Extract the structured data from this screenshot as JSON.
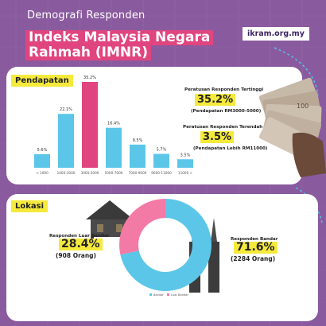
{
  "header": {
    "subtitle": "Demografi Responden",
    "title_line1": "Indeks Malaysia Negara",
    "title_line2": "Rahmah (IMNR)",
    "website": "ikram.org.my"
  },
  "income": {
    "tag": "Pendapatan",
    "highest": {
      "label": "Peratusan Responden Tertinggi",
      "value": "35.2%",
      "note": "(Pendapatan RM3000-5000)"
    },
    "lowest": {
      "label": "Peratusan Responden Terendah",
      "value": "3.5%",
      "note": "(Pendapatan Lebih RM11000)"
    }
  },
  "location": {
    "tag": "Lokasi",
    "rural": {
      "label": "Responden Luar Bandar",
      "percent": "28.4%",
      "count": "(908 Orang)"
    },
    "urban": {
      "label": "Responden Bandar",
      "percent": "71.6%",
      "count": "(2284 Orang)"
    }
  },
  "colors": {
    "highlight_bar": "#e0457f",
    "bar": "#5cc6e8",
    "donut_urban": "#5cc6e8",
    "donut_rural": "#f47aa6"
  },
  "chart_data": [
    {
      "type": "bar",
      "categories": [
        "< 1000",
        "1000-3000",
        "3000-5000",
        "5000-7000",
        "7000-9000",
        "9000-11000",
        "11000 >"
      ],
      "values": [
        5.6,
        22.1,
        35.2,
        16.4,
        9.5,
        5.7,
        3.5
      ],
      "value_labels": [
        "5.6%",
        "22.1%",
        "35.2%",
        "16.4%",
        "9.5%",
        "5.7%",
        "3.5%"
      ],
      "highlight_index": 2,
      "ylim": [
        0,
        35.2
      ],
      "grid": false
    },
    {
      "type": "pie",
      "donut": true,
      "labels": [
        "Bandar",
        "Luar Bandar"
      ],
      "values": [
        71.6,
        28.4
      ],
      "colors": [
        "#5cc6e8",
        "#f47aa6"
      ],
      "legend": [
        "Bandar",
        "Luar Bandar"
      ],
      "legend_position": "bottom"
    }
  ]
}
